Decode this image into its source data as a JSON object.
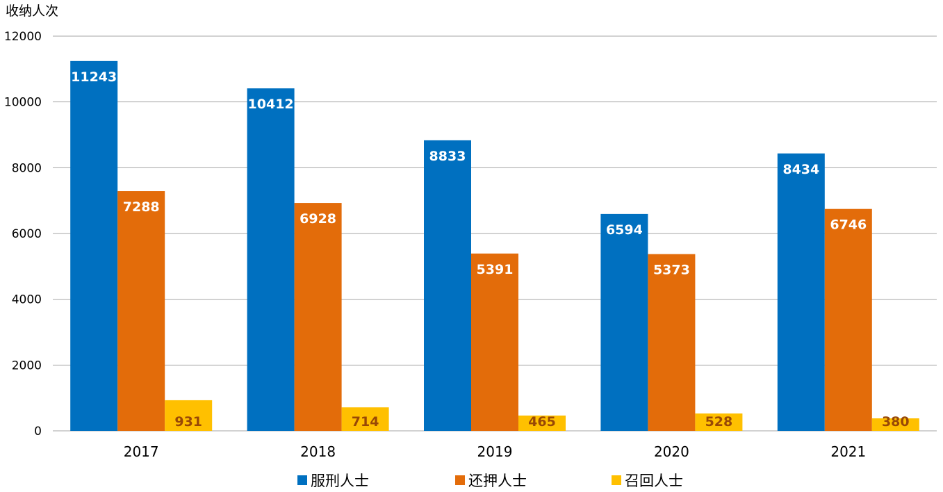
{
  "chart_data": {
    "type": "bar",
    "ylabel": "收纳人次",
    "ylim": [
      0,
      12000
    ],
    "yticks": [
      0,
      2000,
      4000,
      6000,
      8000,
      10000,
      12000
    ],
    "grid": true,
    "legend_position": "bottom",
    "categories": [
      "2017",
      "2018",
      "2019",
      "2020",
      "2021"
    ],
    "series": [
      {
        "name": "服刑人士",
        "color": "#0070C0",
        "label_color": "#FFFFFF",
        "values": [
          11243,
          10412,
          8833,
          6594,
          8434
        ]
      },
      {
        "name": "还押人士",
        "color": "#E36C0A",
        "label_color": "#FFFFFF",
        "values": [
          7288,
          6928,
          5391,
          5373,
          6746
        ]
      },
      {
        "name": "召回人士",
        "color": "#FFC000",
        "label_color": "#984806",
        "values": [
          931,
          714,
          465,
          528,
          380
        ]
      }
    ]
  }
}
